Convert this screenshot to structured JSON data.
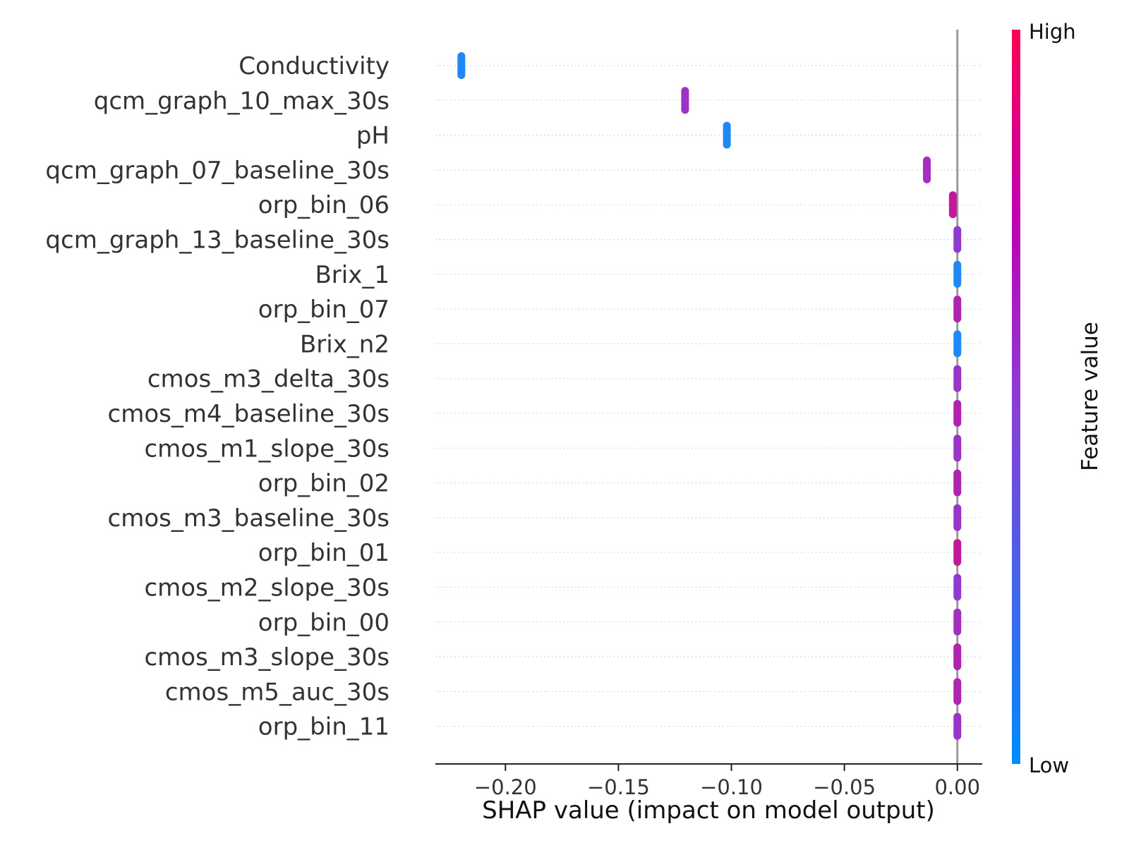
{
  "chart_data": {
    "type": "scatter",
    "subtype": "shap-beeswarm",
    "title": "",
    "xlabel": "SHAP value (impact on model output)",
    "xlim": [
      -0.231,
      0.011
    ],
    "xticks": [
      -0.2,
      -0.15,
      -0.1,
      -0.05,
      0.0
    ],
    "xtick_labels": [
      "−0.20",
      "−0.15",
      "−0.10",
      "−0.05",
      "0.00"
    ],
    "zero_line": 0.0,
    "grid": "dotted horizontal per feature",
    "colorbar": {
      "label": "Feature value",
      "high_label": "High",
      "low_label": "Low",
      "high_color": "#ff0052",
      "mid_color": "#c000b0",
      "low_color": "#008bfb",
      "placement": "right"
    },
    "features": [
      {
        "name": "Conductivity",
        "value": -0.2195,
        "color": "#1e88f5"
      },
      {
        "name": "qcm_graph_10_max_30s",
        "value": -0.1205,
        "color": "#9b33c8"
      },
      {
        "name": "pH",
        "value": -0.102,
        "color": "#1e88f5"
      },
      {
        "name": "qcm_graph_07_baseline_30s",
        "value": -0.0135,
        "color": "#a42ec0"
      },
      {
        "name": "orp_bin_06",
        "value": -0.002,
        "color": "#c2199a"
      },
      {
        "name": "qcm_graph_13_baseline_30s",
        "value": 0.0,
        "color": "#8f3ad0"
      },
      {
        "name": "Brix_1",
        "value": 0.0,
        "color": "#1e88f5"
      },
      {
        "name": "orp_bin_07",
        "value": 0.0,
        "color": "#b023b0"
      },
      {
        "name": "Brix_n2",
        "value": 0.0,
        "color": "#1e88f5"
      },
      {
        "name": "cmos_m3_delta_30s",
        "value": 0.0,
        "color": "#9b33c8"
      },
      {
        "name": "cmos_m4_baseline_30s",
        "value": 0.0,
        "color": "#b023b0"
      },
      {
        "name": "cmos_m1_slope_30s",
        "value": 0.0,
        "color": "#9b33c8"
      },
      {
        "name": "orp_bin_02",
        "value": 0.0,
        "color": "#b023b0"
      },
      {
        "name": "cmos_m3_baseline_30s",
        "value": 0.0,
        "color": "#9b33c8"
      },
      {
        "name": "orp_bin_01",
        "value": 0.0,
        "color": "#c2199a"
      },
      {
        "name": "cmos_m2_slope_30s",
        "value": 0.0,
        "color": "#8f3ad0"
      },
      {
        "name": "orp_bin_00",
        "value": 0.0,
        "color": "#a42ec0"
      },
      {
        "name": "cmos_m3_slope_30s",
        "value": 0.0,
        "color": "#b023b0"
      },
      {
        "name": "cmos_m5_auc_30s",
        "value": 0.0,
        "color": "#b023b0"
      },
      {
        "name": "orp_bin_11",
        "value": 0.0,
        "color": "#9b33c8"
      }
    ]
  }
}
